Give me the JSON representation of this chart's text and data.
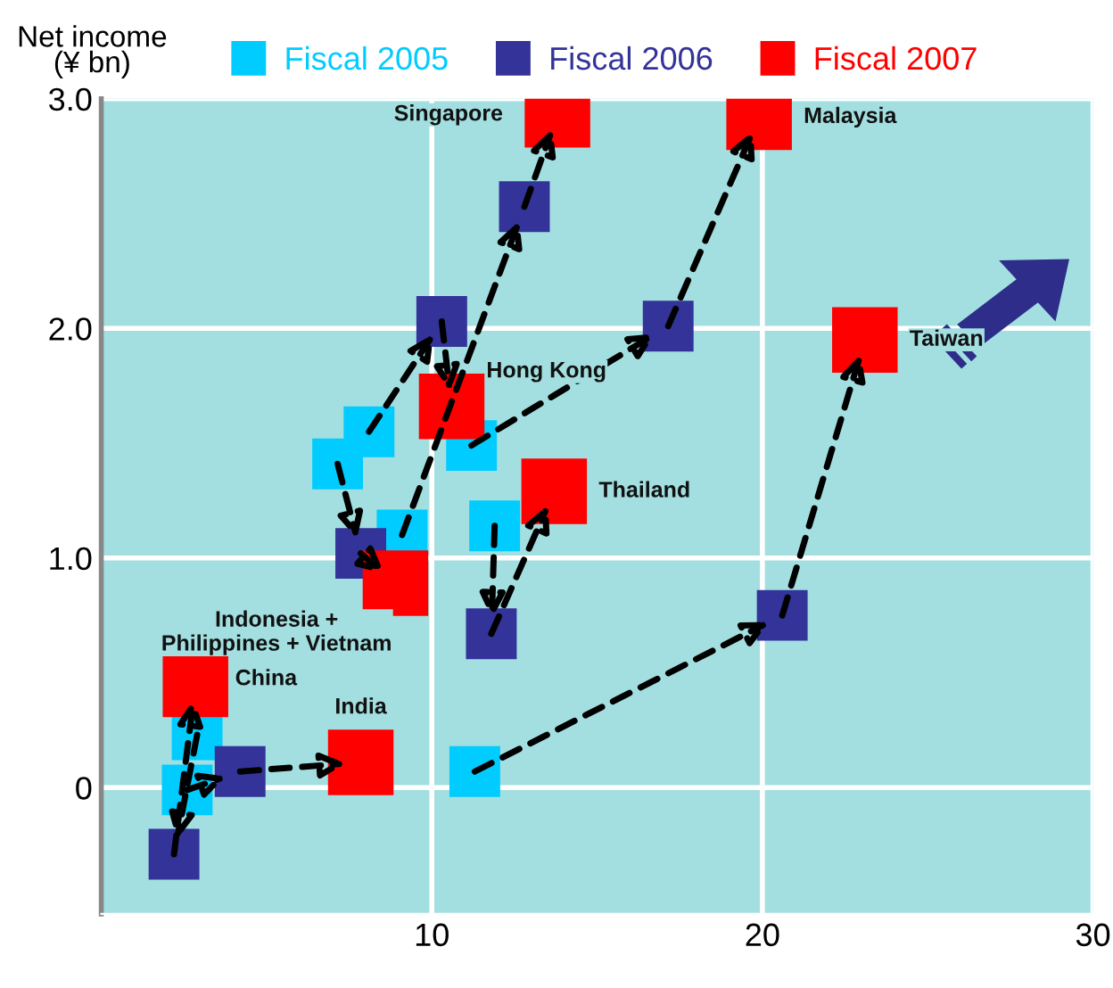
{
  "chart_data": {
    "type": "scatter",
    "ylabel": "Net income\n(¥ bn)",
    "series": [
      {
        "name": "Fiscal 2005",
        "color": "#00ccff",
        "x": [
          9.1,
          8.1,
          7.15,
          11.2,
          11.9,
          11.3,
          2.9,
          2.6
        ],
        "values": [
          1.1,
          1.55,
          1.41,
          1.49,
          1.14,
          0.07,
          0.23,
          -0.01
        ]
      },
      {
        "name": "Fiscal 2006",
        "color": "#333399",
        "x": [
          12.8,
          10.3,
          7.85,
          17.15,
          11.8,
          20.6,
          2.2,
          4.2
        ],
        "values": [
          2.53,
          2.03,
          1.02,
          2.01,
          0.67,
          0.75,
          -0.29,
          0.07
        ]
      },
      {
        "name": "Fiscal 2007",
        "color": "#ff0000",
        "x": [
          13.8,
          10.6,
          8.9,
          19.9,
          13.7,
          23.1,
          2.85,
          7.85
        ],
        "values": [
          2.93,
          1.66,
          0.89,
          2.92,
          1.29,
          1.95,
          0.45,
          0.11
        ]
      }
    ],
    "annotations": [
      {
        "text": "Singapore",
        "x": 13.8,
        "y": 2.93
      },
      {
        "text": "Hong Kong",
        "x": 10.6,
        "y": 1.66
      },
      {
        "text": "Indonesia +\nPhilippines + Vietnam",
        "x": 8.9,
        "y": 0.89
      },
      {
        "text": "Malaysia",
        "x": 19.9,
        "y": 2.92
      },
      {
        "text": "Thailand",
        "x": 13.7,
        "y": 1.29
      },
      {
        "text": "Taiwan",
        "x": 23.1,
        "y": 1.95
      },
      {
        "text": "China",
        "x": 2.85,
        "y": 0.45
      },
      {
        "text": "India",
        "x": 7.85,
        "y": 0.11
      }
    ],
    "xlim": [
      0,
      30
    ],
    "xticks": [
      10,
      20,
      30
    ],
    "ylim": [
      -0.55,
      3.0
    ],
    "yticks": [
      0,
      {
        "value": 1.0,
        "label": "1.0"
      },
      {
        "value": 2.0,
        "label": "2.0"
      },
      {
        "value": 3.0,
        "label": "3.0"
      }
    ],
    "marker": "square",
    "grid": true,
    "legend": "top"
  }
}
